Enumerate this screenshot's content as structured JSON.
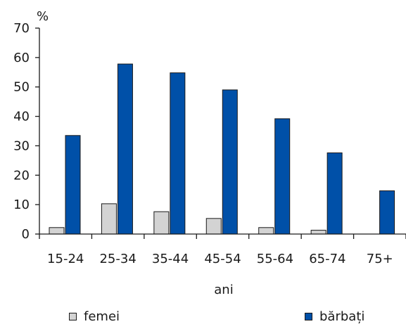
{
  "chart_data": {
    "type": "bar",
    "ylabel": "%",
    "xlabel": "ani",
    "ylim": [
      0,
      70
    ],
    "yticks": [
      0,
      10,
      20,
      30,
      40,
      50,
      60,
      70
    ],
    "categories": [
      "15-24",
      "25-34",
      "35-44",
      "45-54",
      "55-64",
      "65-74",
      "75+"
    ],
    "series": [
      {
        "name": "femei",
        "values": [
          2.2,
          10.3,
          7.6,
          5.3,
          2.2,
          1.3,
          0
        ],
        "color": "#d3d3d3"
      },
      {
        "name": "bărbați",
        "values": [
          33.5,
          57.8,
          54.8,
          49,
          39.2,
          27.6,
          14.7
        ],
        "color": "#0050a8"
      }
    ],
    "legend_position": "bottom"
  }
}
